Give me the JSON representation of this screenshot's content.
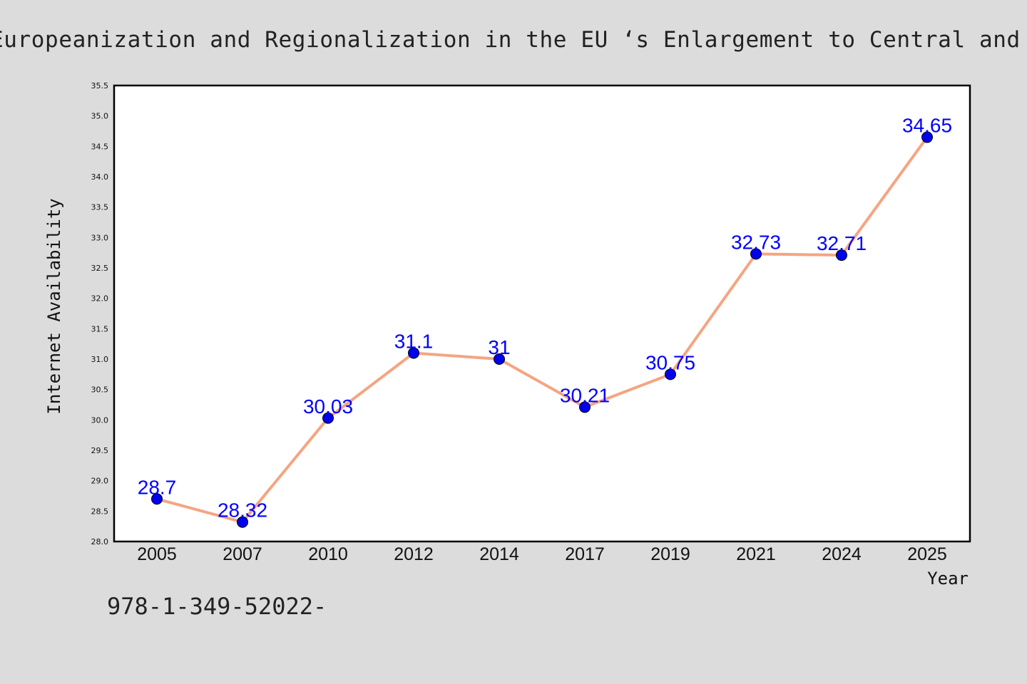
{
  "title": "Europeanization and Regionalization in the EU ‘s Enlargement to Central and Eastern Europe",
  "footer_code": "978-1-349-52022-",
  "colors": {
    "background": "#dcdcdc",
    "plot_background": "#ffffff",
    "line": "#f4a582",
    "marker": "#0000ee",
    "label": "#0000ff"
  },
  "chart_data": {
    "type": "line",
    "title": "Europeanization and Regionalization in the EU ‘s Enlargement to Central and Eastern Europe",
    "xlabel": "Year",
    "ylabel": "Internet Availability",
    "categories": [
      "2005",
      "2007",
      "2010",
      "2012",
      "2014",
      "2017",
      "2019",
      "2021",
      "2024",
      "2025"
    ],
    "series": [
      {
        "values": [
          28.7,
          28.32,
          30.03,
          31.1,
          31,
          30.21,
          30.75,
          32.73,
          32.71,
          34.65
        ],
        "labels": [
          "28.7",
          "28.32",
          "30.03",
          "31.1",
          "31",
          "30.21",
          "30.75",
          "32.73",
          "32.71",
          "34.65"
        ]
      }
    ],
    "ylim": [
      28.0,
      35.5
    ],
    "yticks": [
      "28.0",
      "28.5",
      "29.0",
      "29.5",
      "30.0",
      "30.5",
      "31.0",
      "31.5",
      "32.0",
      "32.5",
      "33.0",
      "33.5",
      "34.0",
      "34.5",
      "35.0",
      "35.5"
    ],
    "grid": false,
    "legend": "none"
  }
}
